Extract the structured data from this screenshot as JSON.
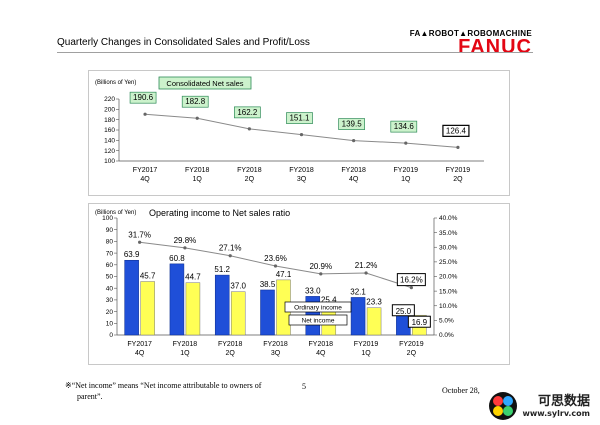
{
  "page": {
    "title": "Quarterly Changes in Consolidated Sales and Profit/Loss",
    "brand_tagline": "FA▲ROBOT▲ROBOMACHINE",
    "brand_logo": "FANUC",
    "footnote_line1": "※“Net income” means “Net income attributable to owners of",
    "footnote_line2": "parent”.",
    "page_number": "5",
    "date_text": "October 28,",
    "watermark_text": "可思数据",
    "watermark_url": "www.sylrv.com"
  },
  "colors": {
    "brand_red": "#e30613",
    "sales_box_fill": "#ccf2cc",
    "sales_box_border": "#2e8b57",
    "operating_bar": "#1f4fd8",
    "ordinary_bar": "#ffff55",
    "line": "#8a8a8a"
  },
  "chart_data": [
    {
      "type": "line",
      "title": "Consolidated Net sales",
      "unit_label": "(Billions of Yen)",
      "categories": [
        [
          "FY2017",
          "4Q"
        ],
        [
          "FY2018",
          "1Q"
        ],
        [
          "FY2018",
          "2Q"
        ],
        [
          "FY2018",
          "3Q"
        ],
        [
          "FY2018",
          "4Q"
        ],
        [
          "FY2019",
          "1Q"
        ],
        [
          "FY2019",
          "2Q"
        ]
      ],
      "series": [
        {
          "values": [
            190.6,
            182.8,
            162.2,
            151.1,
            139.5,
            134.6,
            126.4
          ]
        }
      ],
      "value_labels": [
        "190.6",
        "182.8",
        "162.2",
        "151.1",
        "139.5",
        "134.6",
        "126.4"
      ],
      "yticks": [
        100,
        120,
        140,
        160,
        180,
        200,
        220
      ],
      "ylim": [
        100,
        220
      ],
      "highlight_last": true
    },
    {
      "type": "bar",
      "title": "Operating income to Net sales ratio",
      "unit_label": "(Billions of Yen)",
      "categories": [
        [
          "FY2017",
          "4Q"
        ],
        [
          "FY2018",
          "1Q"
        ],
        [
          "FY2018",
          "2Q"
        ],
        [
          "FY2018",
          "3Q"
        ],
        [
          "FY2018",
          "4Q"
        ],
        [
          "FY2019",
          "1Q"
        ],
        [
          "FY2019",
          "2Q"
        ]
      ],
      "series": [
        {
          "values": [
            63.9,
            60.8,
            51.2,
            38.5,
            33.0,
            32.1,
            25.0
          ],
          "labels": [
            "63.9",
            "60.8",
            "51.2",
            "38.5",
            "33.0",
            "32.1",
            "25.0"
          ]
        },
        {
          "name": "Ordinary income",
          "values": [
            45.7,
            44.7,
            37.0,
            47.1,
            25.4,
            23.3,
            16.9
          ],
          "labels": [
            "45.7",
            "44.7",
            "37.0",
            "47.1",
            "25.4",
            "23.3",
            "16.9"
          ]
        },
        {
          "name": "Net income",
          "values": [
            31.7,
            29.8,
            27.1,
            23.6,
            20.9,
            21.2,
            16.2
          ],
          "labels": [
            "31.7%",
            "29.8%",
            "27.1%",
            "23.6%",
            "20.9%",
            "21.2%",
            "16.2%"
          ],
          "axis": "right",
          "line": true
        }
      ],
      "yticks_left": [
        0,
        10,
        20,
        30,
        40,
        50,
        60,
        70,
        80,
        90,
        100
      ],
      "ylim_left": [
        0,
        100
      ],
      "yticks_right": [
        "0.0%",
        "5.0%",
        "10.0%",
        "15.0%",
        "20.0%",
        "25.0%",
        "30.0%",
        "35.0%",
        "40.0%"
      ],
      "ylim_right": [
        0,
        40
      ],
      "legend_placement": "inside, between FY2018 4Q and FY2019 1Q"
    }
  ]
}
